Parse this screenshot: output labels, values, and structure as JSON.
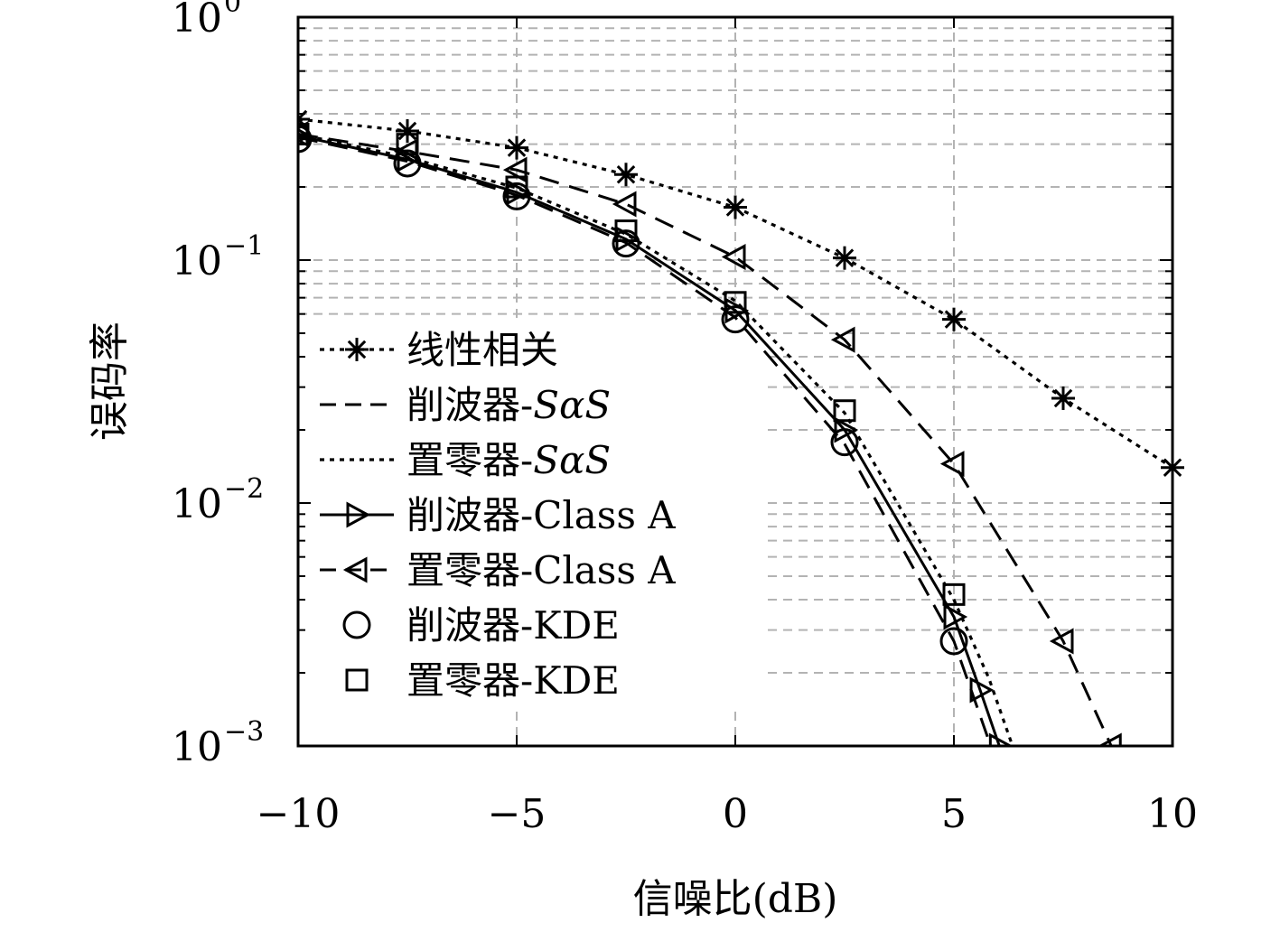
{
  "chart_data": {
    "type": "line",
    "xlabel": "信噪比(dB)",
    "ylabel": "误码率",
    "xlim": [
      -10,
      10
    ],
    "ylim": [
      0.001,
      1
    ],
    "yscale": "log",
    "grid": true,
    "legend_position": "left-middle",
    "xticks": [
      {
        "value": -10,
        "label": "−10"
      },
      {
        "value": -5,
        "label": "−5"
      },
      {
        "value": 0,
        "label": "0"
      },
      {
        "value": 5,
        "label": "5"
      },
      {
        "value": 10,
        "label": "10"
      }
    ],
    "yticks": [
      {
        "value": 1,
        "base": "10",
        "exp": "0"
      },
      {
        "value": 0.1,
        "base": "10",
        "exp": "−1"
      },
      {
        "value": 0.01,
        "base": "10",
        "exp": "−2"
      },
      {
        "value": 0.001,
        "base": "10",
        "exp": "−3"
      }
    ],
    "series": [
      {
        "name": "线性相关",
        "name_italic": "",
        "line": "dotted",
        "marker": "star",
        "x": [
          -10,
          -7.5,
          -5,
          -2.5,
          0,
          2.5,
          5,
          7.5,
          10
        ],
        "y": [
          0.38,
          0.34,
          0.29,
          0.225,
          0.165,
          0.102,
          0.057,
          0.027,
          0.014
        ]
      },
      {
        "name": "削波器-",
        "name_italic": "SαS",
        "line": "dashed",
        "marker": "none",
        "x": [
          -10,
          -7.5,
          -5,
          -2.5,
          0,
          2.5,
          5,
          5.5,
          5.84
        ],
        "y": [
          0.32,
          0.255,
          0.185,
          0.118,
          0.058,
          0.0175,
          0.0027,
          0.0015,
          0.001
        ]
      },
      {
        "name": "置零器-",
        "name_italic": "SαS",
        "line": "dotted",
        "marker": "none",
        "x": [
          -10,
          -7.5,
          -5,
          -2.5,
          0,
          2.5,
          5,
          5.8,
          6.34
        ],
        "y": [
          0.33,
          0.265,
          0.198,
          0.128,
          0.068,
          0.0235,
          0.004,
          0.0019,
          0.001
        ]
      },
      {
        "name": "削波器-Class A",
        "name_italic": "",
        "line": "solid",
        "marker": "triangle-right",
        "x": [
          -10,
          -7.5,
          -5,
          -2.5,
          0,
          2.5,
          5,
          5.6,
          6.04
        ],
        "y": [
          0.325,
          0.26,
          0.19,
          0.122,
          0.062,
          0.02,
          0.0034,
          0.0017,
          0.001
        ]
      },
      {
        "name": "置零器-Class A",
        "name_italic": "",
        "line": "dashed",
        "marker": "triangle-left",
        "x": [
          -10,
          -7.5,
          -5,
          -2.5,
          0,
          2.5,
          5,
          7.5,
          8.6
        ],
        "y": [
          0.33,
          0.28,
          0.235,
          0.17,
          0.103,
          0.047,
          0.0145,
          0.0027,
          0.001
        ]
      },
      {
        "name": "削波器-KDE",
        "name_italic": "",
        "line": "none",
        "marker": "circle",
        "x": [
          -10,
          -7.5,
          -5,
          -2.5,
          0,
          2.5,
          5
        ],
        "y": [
          0.315,
          0.25,
          0.183,
          0.117,
          0.057,
          0.0178,
          0.0027
        ]
      },
      {
        "name": "置零器-KDE",
        "name_italic": "",
        "line": "none",
        "marker": "square",
        "x": [
          -10,
          -7.5,
          -5,
          -2.5,
          0,
          2.5,
          5
        ],
        "y": [
          0.33,
          0.3,
          0.2,
          0.132,
          0.067,
          0.024,
          0.0042
        ]
      }
    ]
  }
}
